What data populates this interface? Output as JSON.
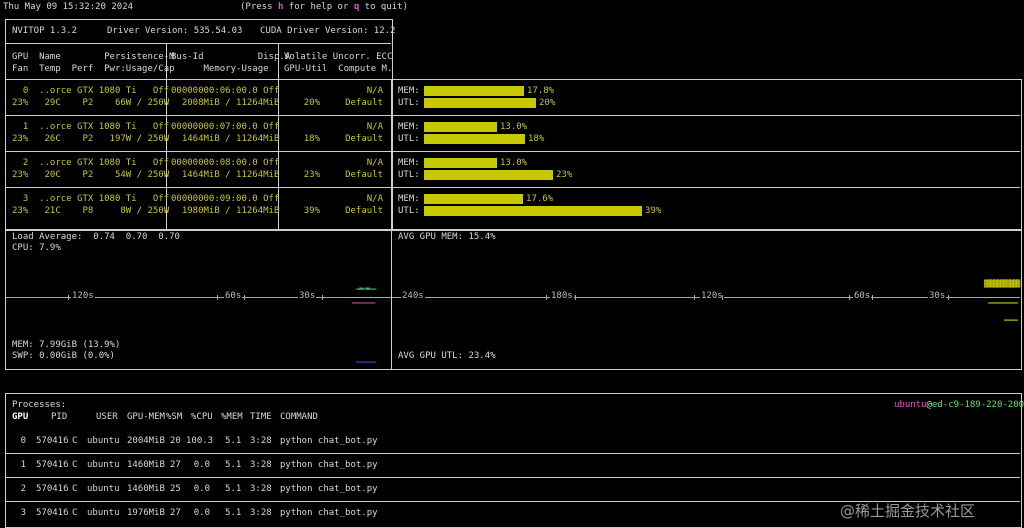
{
  "header": {
    "datetime": "Thu May 09 15:32:20 2024",
    "help_pre": "(Press ",
    "help_key": "h",
    "help_mid": " for help or ",
    "quit_key": "q",
    "help_post": " to quit)"
  },
  "info": {
    "nvitop": "NVITOP 1.3.2",
    "driver": "Driver Version: 535.54.03",
    "cuda": "CUDA Driver Version: 12.2",
    "col1_h1": "GPU  Name        Persistence-M",
    "col1_h2": "Fan  Temp  Perf  Pwr:Usage/Cap",
    "col2_h1": "Bus-Id          Disp.A",
    "col2_h2": "      Memory-Usage",
    "col3_h1": "Volatile Uncorr. ECC",
    "col3_h2": "GPU-Util  Compute M."
  },
  "gpus": [
    {
      "l1": "  0  ..orce GTX 1080 Ti   Off",
      "l2": "23%   29C    P2    66W / 250W",
      "b1": "00000000:06:00.0 Off",
      "b2": "  2008MiB / 11264MiB",
      "v1": "N/A",
      "v2a": "20%",
      "v2b": "Default",
      "mem_label": "MEM:",
      "mem_pct": "17.8%",
      "mem": 17.8,
      "utl_label": "UTL:",
      "utl_pct": "20%",
      "utl": 20
    },
    {
      "l1": "  1  ..orce GTX 1080 Ti   Off",
      "l2": "23%   26C    P2   197W / 250W",
      "b1": "00000000:07:00.0 Off",
      "b2": "  1464MiB / 11264MiB",
      "v1": "N/A",
      "v2a": "18%",
      "v2b": "Default",
      "mem_label": "MEM:",
      "mem_pct": "13.0%",
      "mem": 13.0,
      "utl_label": "UTL:",
      "utl_pct": "18%",
      "utl": 18
    },
    {
      "l1": "  2  ..orce GTX 1080 Ti   Off",
      "l2": "23%   20C    P2    54W / 250W",
      "b1": "00000000:08:00.0 Off",
      "b2": "  1464MiB / 11264MiB",
      "v1": "N/A",
      "v2a": "23%",
      "v2b": "Default",
      "mem_label": "MEM:",
      "mem_pct": "13.0%",
      "mem": 13.0,
      "utl_label": "UTL:",
      "utl_pct": "23%",
      "utl": 23
    },
    {
      "l1": "  3  ..orce GTX 1080 Ti   Off",
      "l2": "23%   21C    P8     8W / 250W",
      "b1": "00000000:09:00.0 Off",
      "b2": "  1980MiB / 11264MiB",
      "v1": "N/A",
      "v2a": "39%",
      "v2b": "Default",
      "mem_label": "MEM:",
      "mem_pct": "17.6%",
      "mem": 17.6,
      "utl_label": "UTL:",
      "utl_pct": "39%",
      "utl": 39
    }
  ],
  "host": {
    "load": "Load Average:  0.74  0.70  0.70",
    "cpu": "CPU: 7.9%",
    "mem": "MEM: 7.99GiB (13.9%)",
    "swp": "SWP: 0.00GiB (0.0%)",
    "axis": [
      "120s",
      "60s",
      "30s"
    ]
  },
  "gpu_hist": {
    "mem": "AVG GPU MEM: 15.4%",
    "utl": "AVG GPU UTL: 23.4%",
    "axis": [
      "240s",
      "180s",
      "120s",
      "60s",
      "30s"
    ]
  },
  "processes": {
    "title": "Processes:",
    "user": "ubuntu",
    "at": "@",
    "host": "ed-c9-189-220-200",
    "headers": [
      "GPU",
      "PID",
      "USER",
      "GPU-MEM",
      "%SM",
      "%CPU",
      "%MEM",
      "TIME",
      "COMMAND"
    ],
    "rows": [
      {
        "gpu": "0",
        "pid": "570416",
        "type": "C",
        "user": "ubuntu",
        "gmem": "2004MiB",
        "sm": "20",
        "cpu": "100.3",
        "mem": "5.1",
        "time": "3:28",
        "cmd": "python chat_bot.py"
      },
      {
        "gpu": "1",
        "pid": "570416",
        "type": "C",
        "user": "ubuntu",
        "gmem": "1460MiB",
        "sm": "27",
        "cpu": "0.0",
        "mem": "5.1",
        "time": "3:28",
        "cmd": "python chat_bot.py"
      },
      {
        "gpu": "2",
        "pid": "570416",
        "type": "C",
        "user": "ubuntu",
        "gmem": "1460MiB",
        "sm": "25",
        "cpu": "0.0",
        "mem": "5.1",
        "time": "3:28",
        "cmd": "python chat_bot.py"
      },
      {
        "gpu": "3",
        "pid": "570416",
        "type": "C",
        "user": "ubuntu",
        "gmem": "1976MiB",
        "sm": "27",
        "cpu": "0.0",
        "mem": "5.1",
        "time": "3:28",
        "cmd": "python chat_bot.py"
      }
    ]
  },
  "watermark": "@稀土掘金技术社区",
  "colors": {
    "accent": "#c8c800",
    "user": "#e44fd9",
    "host": "#5fe35f"
  }
}
